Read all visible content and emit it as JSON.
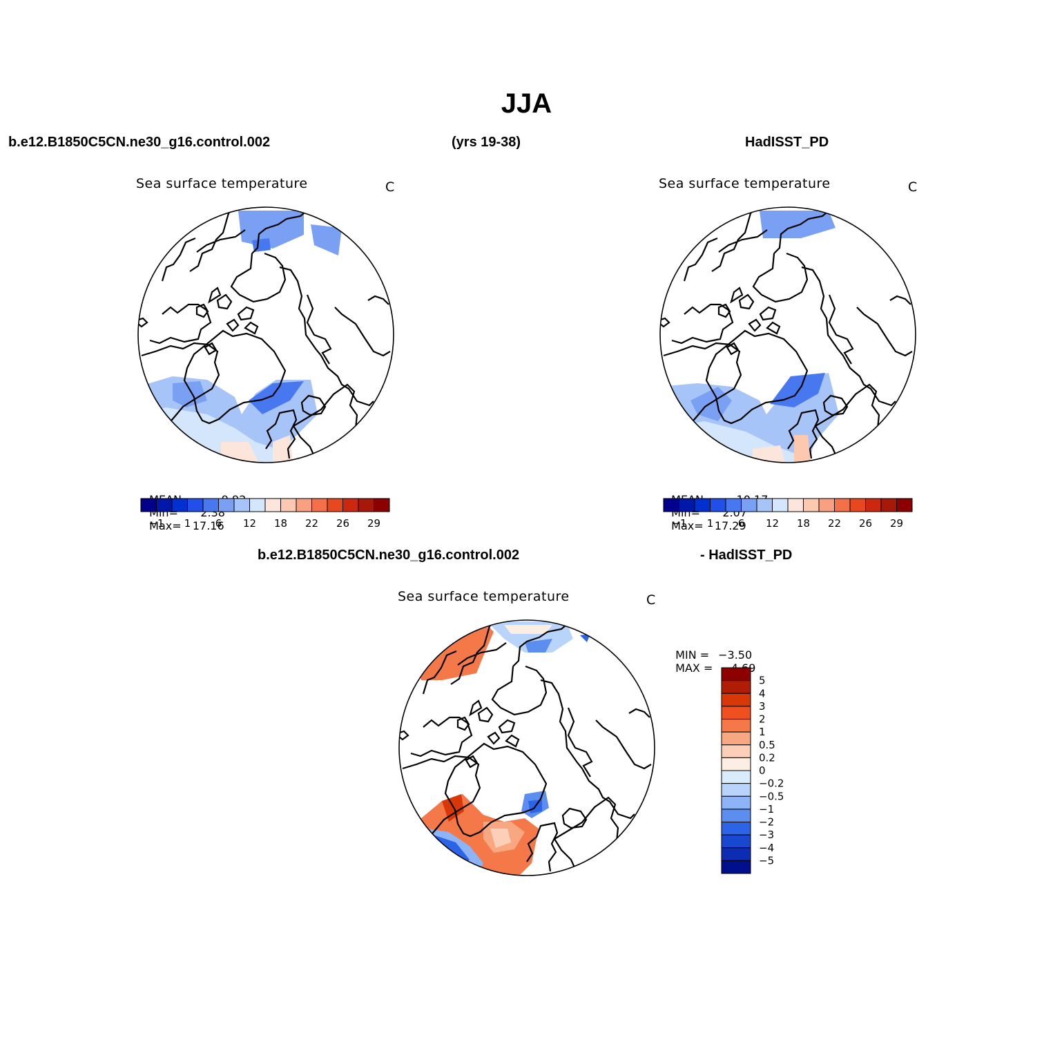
{
  "figure": {
    "title": "JJA",
    "top_left_header": "b.e12.B1850C5CN.ne30_g16.control.002",
    "top_center_header": "(yrs 19-38)",
    "top_right_header": "HadISST_PD",
    "diff_header_left": "b.e12.B1850C5CN.ne30_g16.control.002",
    "diff_header_right": "- HadISST_PD"
  },
  "panels": [
    {
      "id": "model",
      "title": "Sea surface temperature",
      "units": "C",
      "mean_label": "MEAN=",
      "mean": "9.92",
      "min_label": "Min=",
      "min": "2.38",
      "max_label": "Max=",
      "max": "17.16"
    },
    {
      "id": "obs",
      "title": "Sea surface temperature",
      "units": "C",
      "mean_label": "MEAN=",
      "mean": "10.17",
      "min_label": "Min=",
      "min": "2.07",
      "max_label": "Max=",
      "max": "17.29"
    },
    {
      "id": "diff",
      "title": "Sea surface temperature",
      "units": "C",
      "min_label": "MIN =",
      "min": "−3.50",
      "max_label": "MAX =",
      "max": "4.69"
    }
  ],
  "colorbar_abs": {
    "colors": [
      "#00008c",
      "#0018a8",
      "#0030d0",
      "#2050e8",
      "#4878f0",
      "#7aa0f4",
      "#a6c4f8",
      "#d4e6fc",
      "#fce6dc",
      "#fcc8b0",
      "#f8a080",
      "#f47048",
      "#e84820",
      "#cc2810",
      "#a81808",
      "#8c0000"
    ],
    "tick_labels": [
      "−1",
      "1",
      "6",
      "12",
      "18",
      "22",
      "26",
      "29"
    ]
  },
  "colorbar_diff": {
    "colors": [
      "#8c0000",
      "#b01c04",
      "#d83808",
      "#f05020",
      "#f47848",
      "#f8a880",
      "#fcd0b8",
      "#fdeee4",
      "#d8ecfc",
      "#b8d4fa",
      "#8cb4f6",
      "#5c8ef0",
      "#2c64e8",
      "#1848d0",
      "#0c2cb4",
      "#00108c"
    ],
    "tick_labels": [
      "5",
      "4",
      "3",
      "2",
      "1",
      "0.5",
      "0.2",
      "0",
      "−0.2",
      "−0.5",
      "−1",
      "−2",
      "−3",
      "−4",
      "−5"
    ]
  },
  "chart_data": {
    "type": "heatmap",
    "projection": "polar stereographic (north pole)",
    "panels": [
      {
        "panel": "model",
        "variable": "Sea surface temperature",
        "units": "C",
        "mean": 9.92,
        "min": 2.38,
        "max": 17.16,
        "contour_levels": [
          -1,
          0,
          1,
          3,
          6,
          9,
          12,
          15,
          18,
          20,
          22,
          24,
          26,
          28,
          29
        ]
      },
      {
        "panel": "obs",
        "variable": "Sea surface temperature",
        "units": "C",
        "mean": 10.17,
        "min": 2.07,
        "max": 17.29,
        "contour_levels": [
          -1,
          0,
          1,
          3,
          6,
          9,
          12,
          15,
          18,
          20,
          22,
          24,
          26,
          28,
          29
        ]
      },
      {
        "panel": "diff",
        "variable": "Sea surface temperature",
        "units": "C",
        "min": -3.5,
        "max": 4.69,
        "contour_levels": [
          -5,
          -4,
          -3,
          -2,
          -1,
          -0.5,
          -0.2,
          0,
          0.2,
          0.5,
          1,
          2,
          3,
          4,
          5
        ]
      }
    ]
  }
}
